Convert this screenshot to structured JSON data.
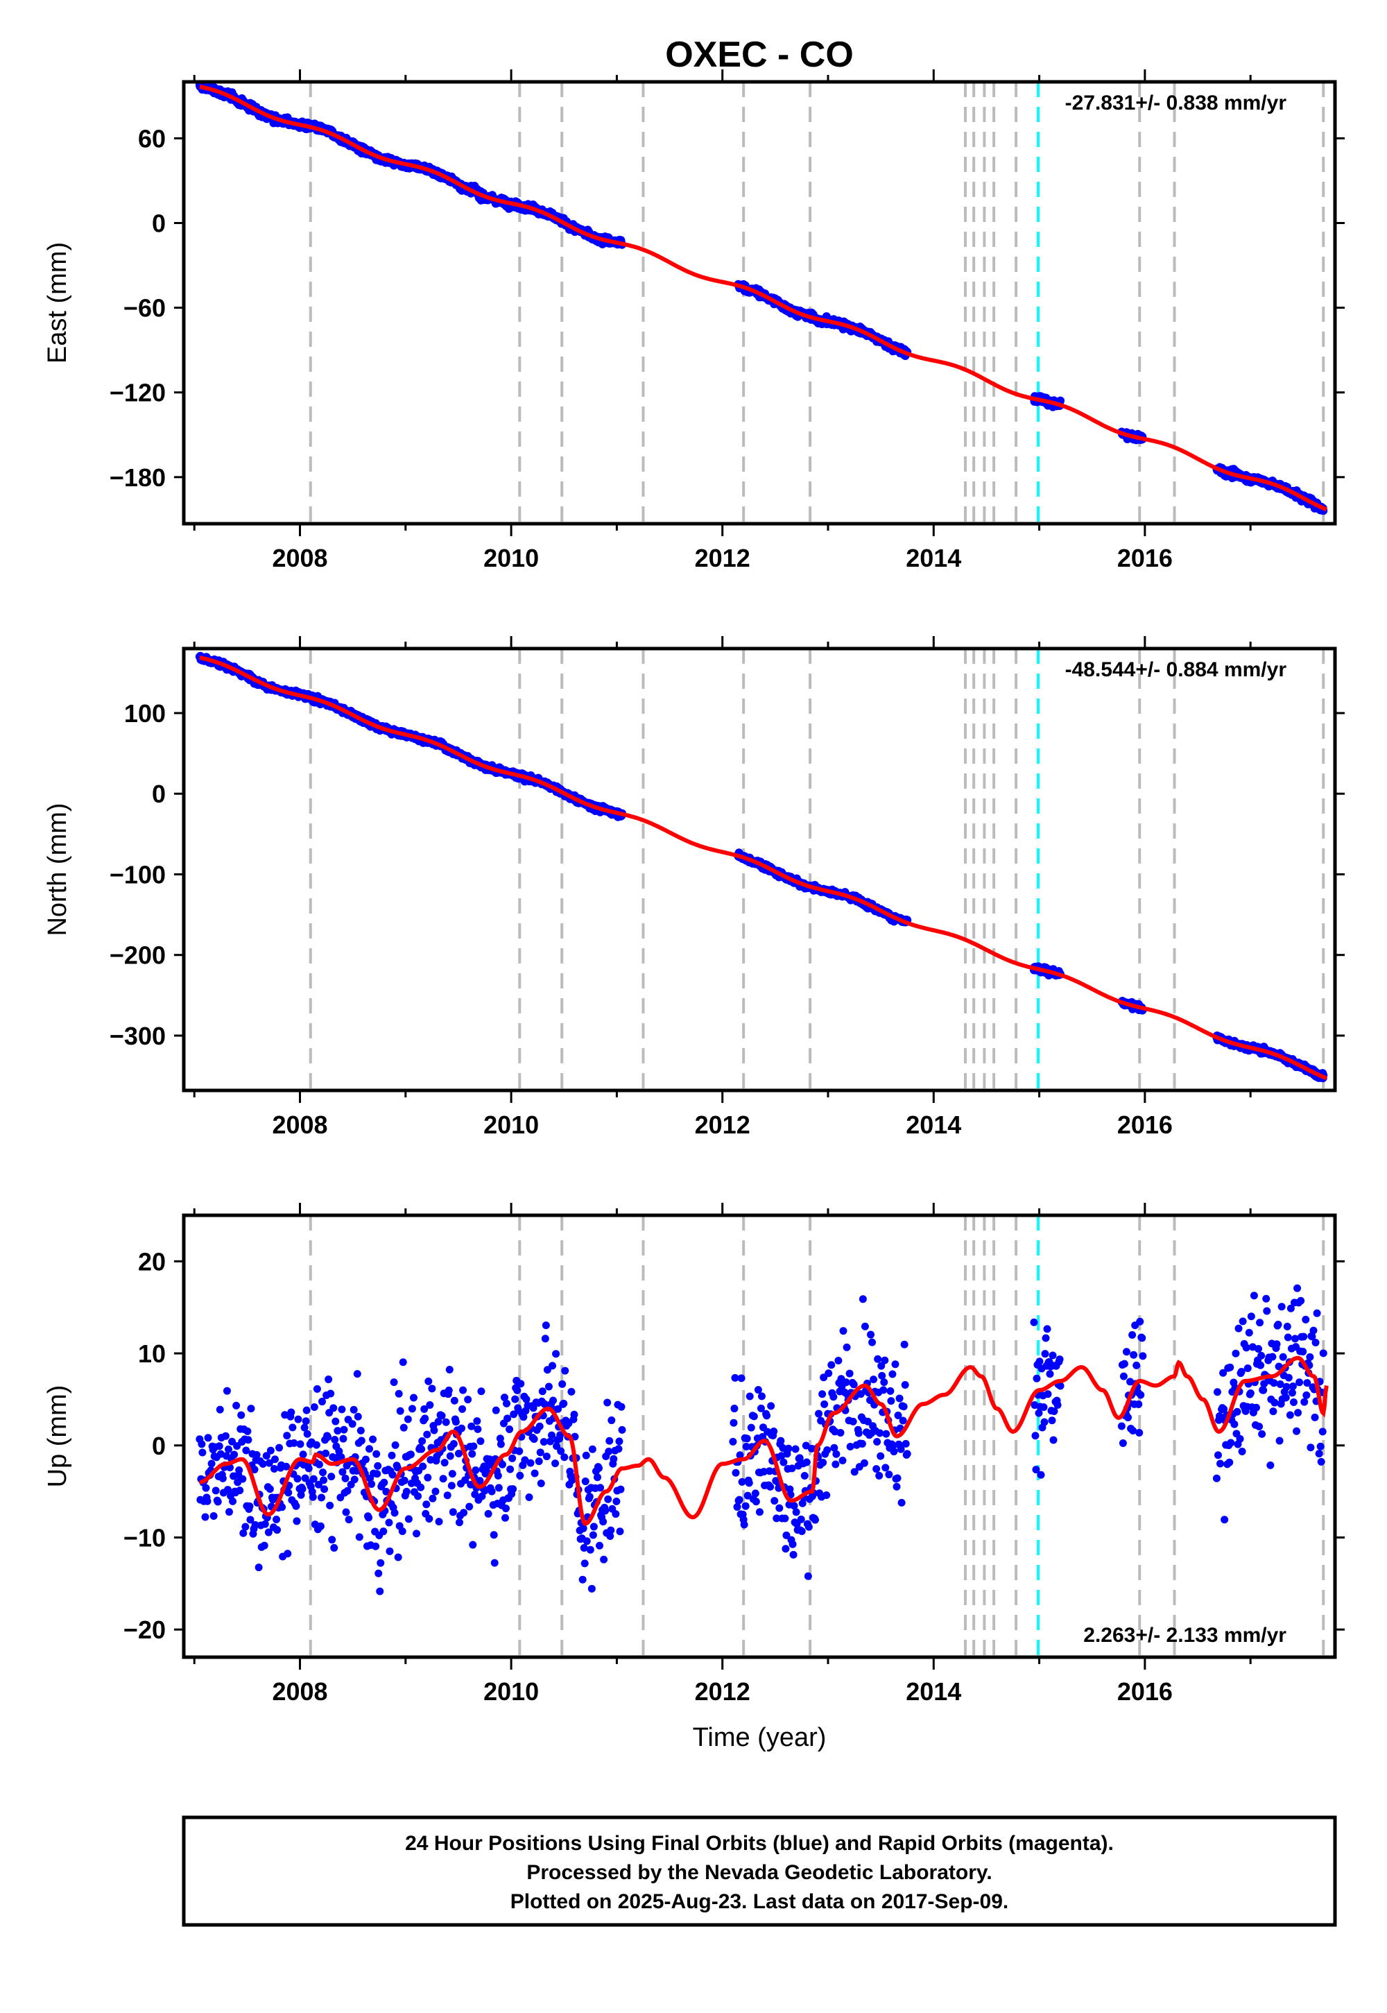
{
  "title": "OXEC - CO",
  "xlabel": "Time (year)",
  "footer": [
    "24 Hour Positions Using Final Orbits (blue) and Rapid Orbits (magenta).",
    "Processed by the Nevada Geodetic Laboratory.",
    "Plotted on 2025-Aug-23. Last data on 2017-Sep-09."
  ],
  "colors": {
    "data": "#0000ff",
    "model": "#ff0000",
    "event_line": "#bbbbbb",
    "highlight_line": "#00ffff",
    "frame": "#000000"
  },
  "chart_data": [
    {
      "type": "scatter",
      "ylabel": "East (mm)",
      "rate_text": "-27.831+/- 0.838 mm/yr",
      "rate_position": "top-right",
      "xlim": [
        2006.9,
        2017.8
      ],
      "ylim": [
        -213,
        100
      ],
      "xticks": [
        2008,
        2010,
        2012,
        2014,
        2016
      ],
      "yticks": [
        60,
        0,
        -60,
        -120,
        -180
      ],
      "trend": {
        "start_year": 2007.05,
        "start_value": 96,
        "slope": -27.831
      },
      "seasonal_amplitude": 2,
      "noise": 1.7,
      "data_segments": [
        [
          2007.05,
          2011.05
        ],
        [
          2012.15,
          2013.75
        ],
        [
          2014.95,
          2015.2
        ],
        [
          2015.78,
          2015.98
        ],
        [
          2016.68,
          2017.69
        ]
      ],
      "vertical_events": [
        2008.1,
        2010.08,
        2010.48,
        2011.25,
        2012.2,
        2012.83,
        2014.3,
        2014.38,
        2014.48,
        2014.57,
        2014.78,
        2015.95,
        2016.28,
        2017.69
      ],
      "highlight_event": 2014.99
    },
    {
      "type": "scatter",
      "ylabel": "North (mm)",
      "rate_text": "-48.544+/- 0.884 mm/yr",
      "rate_position": "top-right",
      "xlim": [
        2006.9,
        2017.8
      ],
      "ylim": [
        -368,
        180
      ],
      "xticks": [
        2008,
        2010,
        2012,
        2014,
        2016
      ],
      "yticks": [
        100,
        0,
        -100,
        -200,
        -300
      ],
      "trend": {
        "start_year": 2007.05,
        "start_value": 168,
        "slope": -48.544
      },
      "seasonal_amplitude": 3,
      "noise": 2.5,
      "data_segments": [
        [
          2007.05,
          2011.05
        ],
        [
          2012.15,
          2013.75
        ],
        [
          2014.95,
          2015.2
        ],
        [
          2015.78,
          2015.98
        ],
        [
          2016.68,
          2017.69
        ]
      ],
      "vertical_events": [
        2008.1,
        2010.08,
        2010.48,
        2011.25,
        2012.2,
        2012.83,
        2014.3,
        2014.38,
        2014.48,
        2014.57,
        2014.78,
        2015.95,
        2016.28,
        2017.69
      ],
      "highlight_event": 2014.99
    },
    {
      "type": "scatter",
      "ylabel": "Up (mm)",
      "rate_text": "2.263+/- 2.133 mm/yr",
      "rate_position": "bottom-right",
      "xlim": [
        2006.9,
        2017.8
      ],
      "ylim": [
        -23,
        25
      ],
      "xticks": [
        2008,
        2010,
        2012,
        2014,
        2016
      ],
      "yticks": [
        20,
        10,
        0,
        -10,
        -20
      ],
      "model_points": [
        [
          2007.05,
          -4
        ],
        [
          2007.3,
          -2
        ],
        [
          2007.45,
          -1.5
        ],
        [
          2007.7,
          -7.5
        ],
        [
          2008.0,
          -1.5
        ],
        [
          2008.12,
          -1.8
        ],
        [
          2008.15,
          -1
        ],
        [
          2008.3,
          -2
        ],
        [
          2008.5,
          -1.5
        ],
        [
          2008.75,
          -7
        ],
        [
          2009.0,
          -2.5
        ],
        [
          2009.3,
          -0.5
        ],
        [
          2009.45,
          1.5
        ],
        [
          2009.7,
          -4.5
        ],
        [
          2009.95,
          -1
        ],
        [
          2010.1,
          1.5
        ],
        [
          2010.35,
          4
        ],
        [
          2010.55,
          1
        ],
        [
          2010.7,
          -8.5
        ],
        [
          2010.9,
          -5
        ],
        [
          2011.05,
          -2.5
        ],
        [
          2011.2,
          -2.2
        ],
        [
          2011.3,
          -1.5
        ],
        [
          2011.45,
          -3.5
        ],
        [
          2011.72,
          -7.8
        ],
        [
          2012.0,
          -2
        ],
        [
          2012.2,
          -1.5
        ],
        [
          2012.4,
          0.5
        ],
        [
          2012.65,
          -6
        ],
        [
          2012.85,
          -5
        ],
        [
          2012.9,
          0
        ],
        [
          2013.05,
          3.5
        ],
        [
          2013.35,
          6.5
        ],
        [
          2013.5,
          4.5
        ],
        [
          2013.65,
          1
        ],
        [
          2013.9,
          4.5
        ],
        [
          2014.1,
          5.5
        ],
        [
          2014.35,
          8.5
        ],
        [
          2014.45,
          7.5
        ],
        [
          2014.6,
          4
        ],
        [
          2014.75,
          1.5
        ],
        [
          2015.0,
          6
        ],
        [
          2015.2,
          7
        ],
        [
          2015.4,
          8.5
        ],
        [
          2015.6,
          6
        ],
        [
          2015.75,
          3
        ],
        [
          2015.95,
          7
        ],
        [
          2016.1,
          6.5
        ],
        [
          2016.28,
          7.5
        ],
        [
          2016.32,
          9
        ],
        [
          2016.4,
          7.5
        ],
        [
          2016.55,
          5
        ],
        [
          2016.7,
          1.5
        ],
        [
          2016.95,
          7
        ],
        [
          2017.2,
          7.5
        ],
        [
          2017.45,
          9.5
        ],
        [
          2017.6,
          7.5
        ],
        [
          2017.69,
          3.5
        ],
        [
          2017.72,
          6.5
        ]
      ],
      "data_segments": [
        [
          2007.05,
          2011.05
        ],
        [
          2012.1,
          2013.75
        ],
        [
          2014.95,
          2015.2
        ],
        [
          2015.78,
          2015.98
        ],
        [
          2016.68,
          2017.69
        ]
      ],
      "noise": 5.5,
      "vertical_events": [
        2008.1,
        2010.08,
        2010.48,
        2011.25,
        2012.2,
        2012.83,
        2014.3,
        2014.38,
        2014.48,
        2014.57,
        2014.78,
        2015.95,
        2016.28,
        2017.69
      ],
      "highlight_event": 2014.99
    }
  ]
}
